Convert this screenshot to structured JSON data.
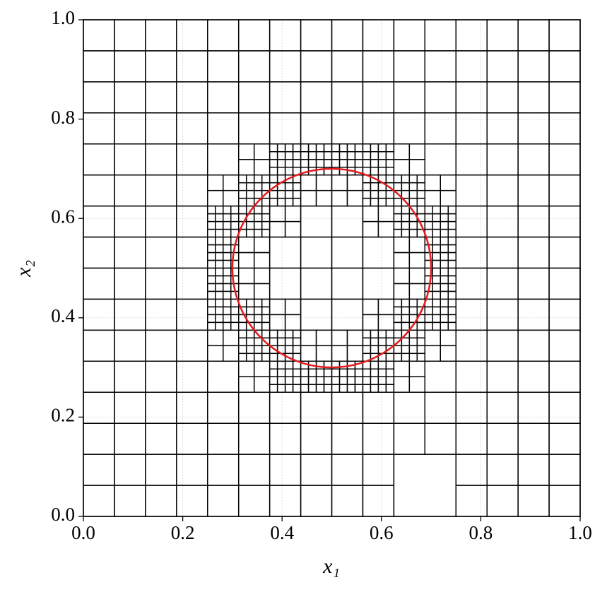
{
  "chart_data": {
    "type": "mesh",
    "xlabel": "x₁",
    "ylabel": "x₂",
    "xlim": [
      0,
      1
    ],
    "ylim": [
      0,
      1
    ],
    "xticks": [
      {
        "value": 0,
        "label": "0.0"
      },
      0.2,
      0.4,
      0.6,
      0.8,
      {
        "value": 1,
        "label": "1.0"
      }
    ],
    "yticks": [
      {
        "value": 0,
        "label": "0.0"
      },
      0.2,
      0.4,
      0.6,
      0.8,
      {
        "value": 1,
        "label": "1.0"
      }
    ],
    "grid": true,
    "mesh_color": "#000000",
    "base_divisions": 16,
    "levels": [
      [
        0,
        0,
        0,
        0,
        0,
        0,
        0,
        0,
        0,
        0,
        -1,
        -1,
        0,
        0,
        0,
        0
      ],
      [
        0,
        0,
        0,
        0,
        0,
        0,
        0,
        0,
        0,
        0,
        -1,
        -1,
        0,
        0,
        0,
        0
      ],
      [
        0,
        0,
        0,
        0,
        0,
        0,
        0,
        0,
        0,
        0,
        0,
        0,
        0,
        0,
        0,
        0
      ],
      [
        0,
        0,
        0,
        0,
        0,
        0,
        0,
        0,
        0,
        0,
        0,
        0,
        0,
        0,
        0,
        0
      ],
      [
        0,
        0,
        0,
        0,
        0,
        1,
        2,
        2,
        2,
        2,
        1,
        0,
        0,
        0,
        0,
        0
      ],
      [
        0,
        0,
        0,
        0,
        1,
        2,
        2,
        1,
        1,
        2,
        2,
        1,
        0,
        0,
        0,
        0
      ],
      [
        0,
        0,
        0,
        0,
        2,
        2,
        1,
        0,
        0,
        1,
        2,
        2,
        0,
        0,
        0,
        0
      ],
      [
        0,
        0,
        0,
        0,
        2,
        1,
        0,
        0,
        0,
        0,
        1,
        2,
        0,
        0,
        0,
        0
      ],
      [
        0,
        0,
        0,
        0,
        2,
        1,
        0,
        0,
        0,
        0,
        1,
        2,
        0,
        0,
        0,
        0
      ],
      [
        0,
        0,
        0,
        0,
        2,
        2,
        1,
        0,
        0,
        1,
        2,
        2,
        0,
        0,
        0,
        0
      ],
      [
        0,
        0,
        0,
        0,
        1,
        2,
        2,
        1,
        1,
        2,
        2,
        1,
        0,
        0,
        0,
        0
      ],
      [
        0,
        0,
        0,
        0,
        0,
        1,
        2,
        2,
        2,
        2,
        1,
        0,
        0,
        0,
        0,
        0
      ],
      [
        0,
        0,
        0,
        0,
        0,
        0,
        0,
        0,
        0,
        0,
        0,
        0,
        0,
        0,
        0,
        0
      ],
      [
        0,
        0,
        0,
        0,
        0,
        0,
        0,
        0,
        0,
        0,
        0,
        0,
        0,
        0,
        0,
        0
      ],
      [
        0,
        0,
        0,
        0,
        0,
        0,
        0,
        0,
        0,
        0,
        0,
        0,
        0,
        0,
        0,
        0
      ],
      [
        0,
        0,
        0,
        0,
        0,
        0,
        0,
        0,
        0,
        0,
        0,
        0,
        0,
        0,
        0,
        0
      ]
    ],
    "circle": {
      "center": [
        0.5,
        0.5
      ],
      "radius": 0.2,
      "color": "#e41a1c"
    }
  }
}
